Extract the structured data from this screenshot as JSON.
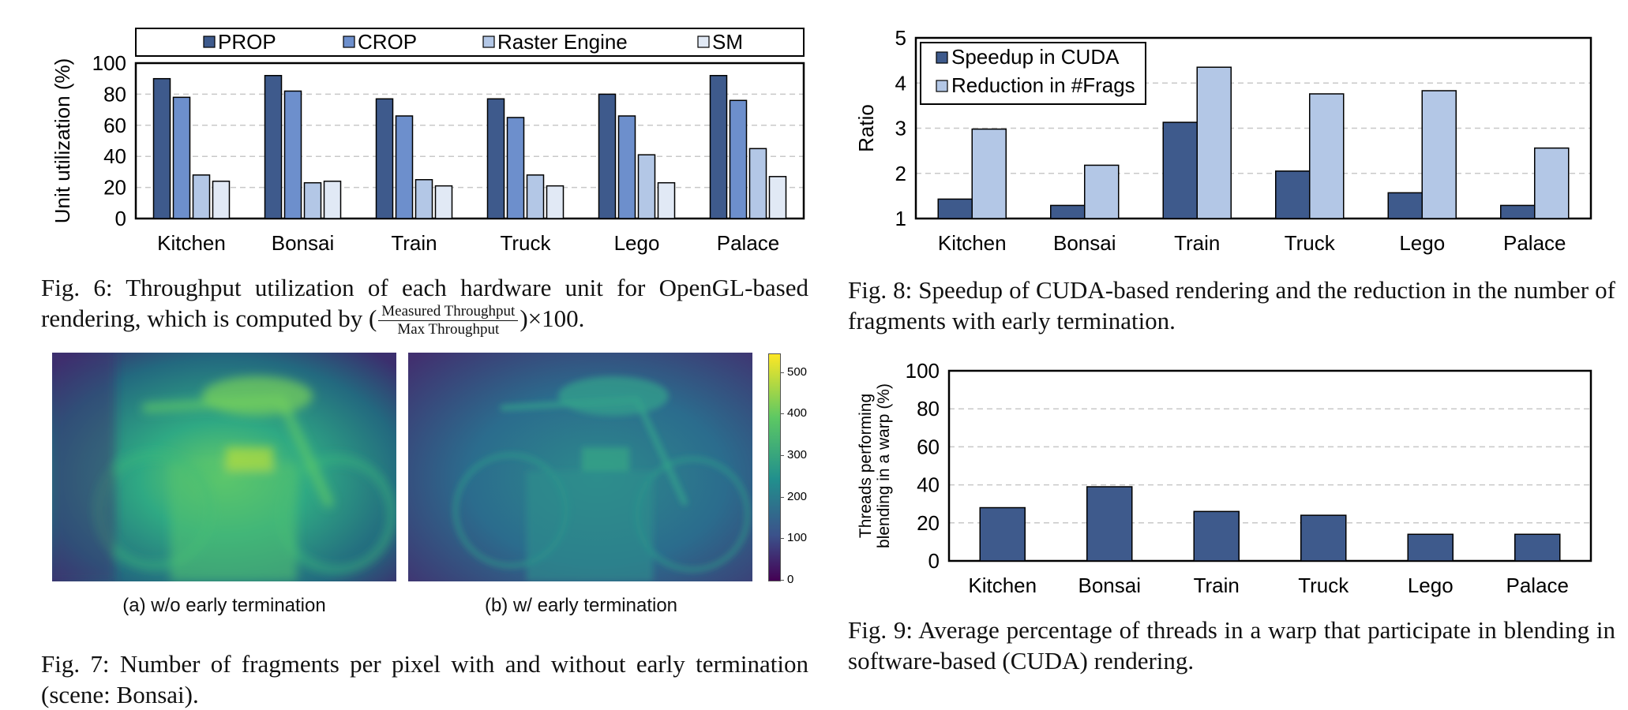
{
  "colors": {
    "prop": "#3e5a8c",
    "crop": "#6d8fcc",
    "raster": "#b3c7e6",
    "sm": "#e1e9f5",
    "dark": "#3e5a8c",
    "light": "#b3c7e6"
  },
  "fig6": {
    "caption_lead": "Fig. 6: Throughput utilization of each hardware unit for OpenGL-based rendering, which is computed by (",
    "frac_num": "Measured Throughput",
    "frac_den": "Max Throughput",
    "caption_tail": ")×100."
  },
  "fig7": {
    "sub_a": "(a) w/o early termination",
    "sub_b": "(b) w/ early termination",
    "colorbar_ticks": [
      "500",
      "400",
      "300",
      "200",
      "100",
      "0"
    ],
    "caption": "Fig. 7: Number of fragments per pixel with and without early termination (scene: Bonsai)."
  },
  "fig8": {
    "caption": "Fig. 8: Speedup of CUDA-based rendering and the reduction in the number of fragments with early termination."
  },
  "fig9": {
    "caption": "Fig. 9: Average percentage of threads in a warp that participate in blending in software-based (CUDA) rendering."
  },
  "chart_data": [
    {
      "id": "fig6",
      "type": "bar",
      "title": "",
      "xlabel": "",
      "ylabel": "Unit utilization (%)",
      "ylim": [
        0,
        100
      ],
      "yticks": [
        "0",
        "20",
        "40",
        "60",
        "80",
        "100"
      ],
      "categories": [
        "Kitchen",
        "Bonsai",
        "Train",
        "Truck",
        "Lego",
        "Palace"
      ],
      "series": [
        {
          "name": "PROP",
          "values": [
            90,
            92,
            77,
            77,
            80,
            92
          ]
        },
        {
          "name": "CROP",
          "values": [
            78,
            82,
            66,
            65,
            66,
            76
          ]
        },
        {
          "name": "Raster Engine",
          "values": [
            28,
            23,
            25,
            28,
            41,
            45
          ]
        },
        {
          "name": "SM",
          "values": [
            24,
            24,
            21,
            21,
            23,
            27
          ]
        }
      ],
      "legend": "top"
    },
    {
      "id": "fig8",
      "type": "bar",
      "title": "",
      "xlabel": "",
      "ylabel": "Ratio",
      "ylim": [
        1,
        5
      ],
      "yticks": [
        "1",
        "2",
        "3",
        "4",
        "5"
      ],
      "categories": [
        "Kitchen",
        "Bonsai",
        "Train",
        "Truck",
        "Lego",
        "Palace"
      ],
      "series": [
        {
          "name": "Speedup in CUDA",
          "values": [
            1.43,
            1.29,
            3.13,
            2.05,
            1.57,
            1.29
          ]
        },
        {
          "name": "Reduction in #Frags",
          "values": [
            2.98,
            2.18,
            4.35,
            3.76,
            3.83,
            2.56
          ]
        }
      ],
      "legend": "top-left"
    },
    {
      "id": "fig9",
      "type": "bar",
      "title": "",
      "xlabel": "",
      "ylabel_line1": "Threads performing",
      "ylabel_line2": "blending in a warp (%)",
      "ylim": [
        0,
        100
      ],
      "yticks": [
        "0",
        "20",
        "40",
        "60",
        "80",
        "100"
      ],
      "categories": [
        "Kitchen",
        "Bonsai",
        "Train",
        "Truck",
        "Lego",
        "Palace"
      ],
      "series": [
        {
          "name": "Threads performing blending",
          "values": [
            28,
            39,
            26,
            24,
            14,
            14
          ]
        }
      ]
    }
  ]
}
